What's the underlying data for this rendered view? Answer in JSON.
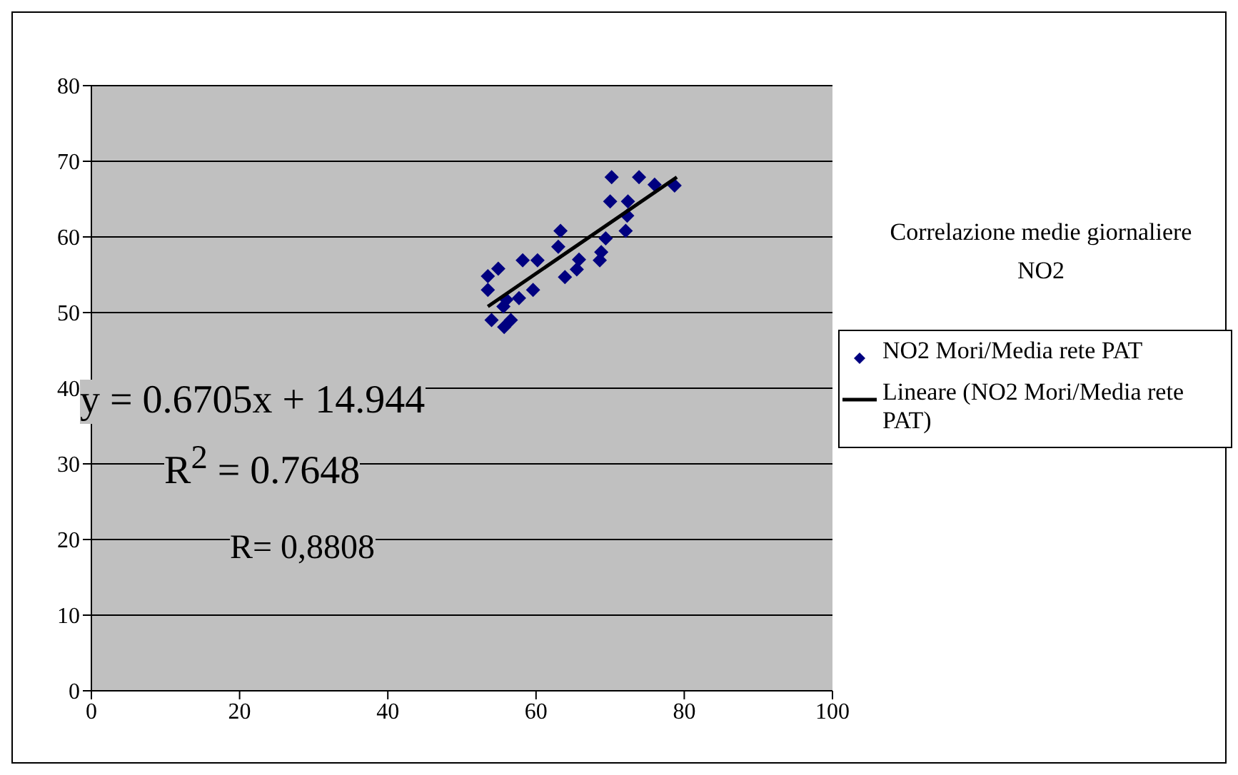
{
  "chart_data": {
    "type": "scatter",
    "title": "Correlazione medie giornaliere NO2",
    "xlim": [
      0,
      100
    ],
    "xticks": [
      0,
      20,
      40,
      60,
      80,
      100
    ],
    "ylim": [
      0,
      80
    ],
    "yticks": [
      0,
      10,
      20,
      30,
      40,
      50,
      60,
      70,
      80
    ],
    "grid": "y",
    "legend": "right",
    "marker": "diamond",
    "series": [
      {
        "name": "NO2 Mori/Media rete PAT",
        "type": "scatter",
        "color": "#000080",
        "x": [
          70.2,
          73.9,
          76.0,
          78.7,
          70.0,
          72.4,
          72.3,
          72.1,
          69.4,
          68.8,
          68.6,
          63.3,
          63.0,
          65.8,
          65.5,
          63.9,
          58.2,
          60.2,
          59.6,
          57.7,
          54.9,
          53.5,
          53.5,
          55.6,
          56.0,
          54.0,
          55.7,
          56.6
        ],
        "values": [
          67.9,
          67.9,
          66.9,
          66.8,
          64.7,
          64.7,
          62.8,
          60.8,
          59.8,
          58.0,
          56.9,
          60.8,
          58.7,
          57.0,
          55.7,
          54.7,
          56.9,
          56.9,
          53.0,
          51.9,
          55.8,
          54.8,
          53.0,
          50.8,
          51.7,
          49.0,
          48.1,
          49.0
        ]
      },
      {
        "name": "Lineare (NO2 Mori/Media rete PAT)",
        "type": "line",
        "color": "#000000",
        "marker": "none",
        "x": [
          53.5,
          79
        ],
        "values": [
          50.8,
          67.9
        ]
      }
    ],
    "annotations": [
      "y = 0.6705x + 14.944",
      "R$^{2}$ = 0.7648",
      "R= 0,8808"
    ]
  }
}
